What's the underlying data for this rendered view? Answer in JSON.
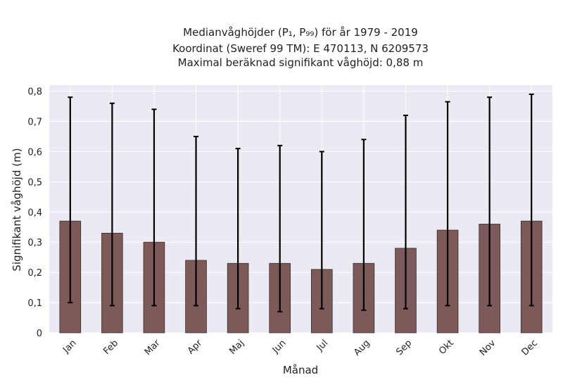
{
  "chart_data": {
    "type": "bar",
    "title_lines": [
      "Medianvåghöjder (P₁, P₉₉) för år 1979 - 2019",
      "Koordinat (Sweref 99 TM): E 470113, N 6209573",
      "Maximal beräknad signifikant våghöjd: 0,88 m"
    ],
    "xlabel": "Månad",
    "ylabel": "Signifikant våghöjd (m)",
    "categories": [
      "Jan",
      "Feb",
      "Mar",
      "Apr",
      "Maj",
      "Jun",
      "Jul",
      "Aug",
      "Sep",
      "Okt",
      "Nov",
      "Dec"
    ],
    "series": [
      {
        "values": [
          0.37,
          0.33,
          0.3,
          0.24,
          0.23,
          0.23,
          0.21,
          0.23,
          0.28,
          0.34,
          0.36,
          0.37
        ],
        "lower": [
          0.1,
          0.09,
          0.09,
          0.09,
          0.08,
          0.07,
          0.08,
          0.075,
          0.08,
          0.09,
          0.09,
          0.09
        ],
        "upper": [
          0.78,
          0.76,
          0.74,
          0.65,
          0.61,
          0.62,
          0.6,
          0.64,
          0.72,
          0.765,
          0.78,
          0.79
        ]
      }
    ],
    "ylim": [
      0,
      0.82
    ],
    "yticks": [
      0,
      0.1,
      0.2,
      0.3,
      0.4,
      0.5,
      0.6,
      0.7,
      0.8
    ],
    "ytick_labels": [
      "0",
      "0,1",
      "0,2",
      "0,3",
      "0,4",
      "0,5",
      "0,6",
      "0,7",
      "0,8"
    ],
    "grid": true,
    "colors": {
      "plot_background": "#eaeaf2",
      "grid": "#ffffff",
      "bar_fill": "#7d5a5a",
      "bar_edge": "#3d2b2b",
      "errorbar": "#000000"
    }
  }
}
